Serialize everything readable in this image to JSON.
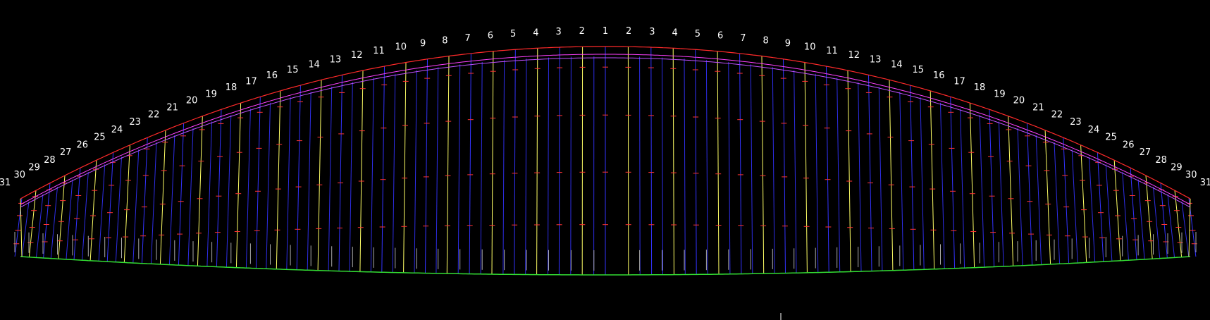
{
  "labels": {
    "left": [
      "1",
      "2",
      "3",
      "4",
      "5",
      "6",
      "7",
      "8",
      "9",
      "10",
      "11",
      "12",
      "13",
      "14",
      "15",
      "16",
      "17",
      "18",
      "19",
      "20",
      "21",
      "22",
      "23",
      "24",
      "25",
      "26",
      "27",
      "28",
      "29",
      "30",
      "31"
    ],
    "right": [
      "1",
      "2",
      "3",
      "4",
      "5",
      "6",
      "7",
      "8",
      "9",
      "10",
      "11",
      "12",
      "13",
      "14",
      "15",
      "16",
      "17",
      "18",
      "19",
      "20",
      "21",
      "22",
      "23",
      "24",
      "25",
      "26",
      "27",
      "28",
      "29",
      "30",
      "31"
    ]
  },
  "colors": {
    "background": "#000000",
    "outline": "#ff2a2a",
    "magenta_line_1": "#ff40ff",
    "magenta_line_2": "#c050ff",
    "trailing_edge": "#33dd33",
    "rib_odd": "#ffff66",
    "rib_even": "#3333ff",
    "tick_marks": "#ff3333",
    "stub_marks": "#aaaaaa",
    "label_text": "#ffffff"
  }
}
